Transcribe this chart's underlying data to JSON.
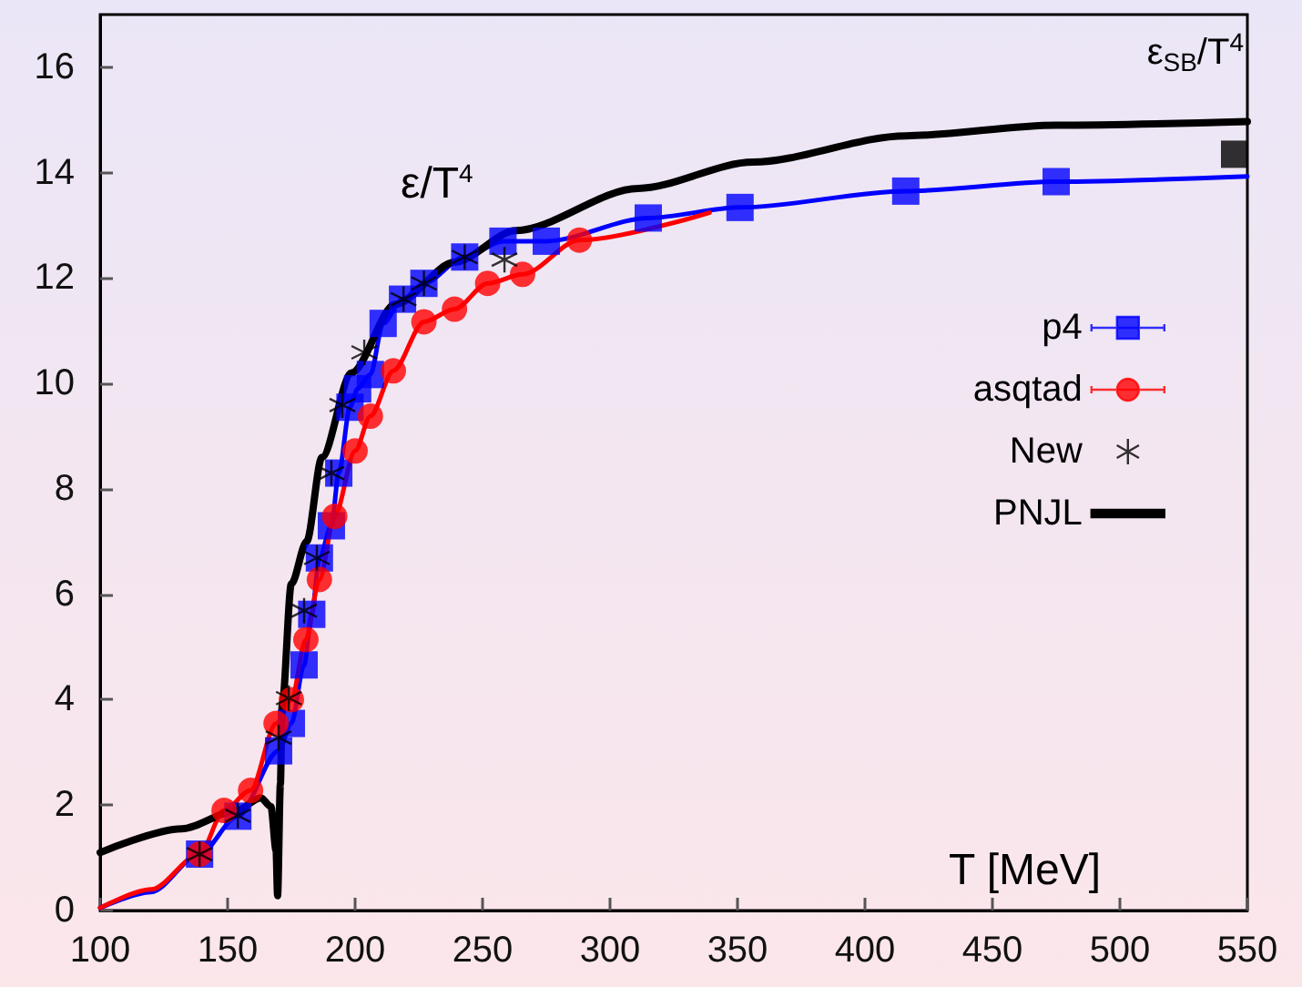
{
  "chart_data": {
    "type": "line",
    "xlabel": "T [MeV]",
    "xlim": [
      100,
      550
    ],
    "xticks": [
      100,
      150,
      200,
      250,
      300,
      350,
      400,
      450,
      500,
      550
    ],
    "ylim": [
      0,
      17
    ],
    "yticks": [
      0,
      2,
      4,
      6,
      8,
      10,
      12,
      14,
      16
    ],
    "grid": false,
    "legend": "right",
    "annotations": [
      "ε/T$^{4}$",
      "ε$_{SB}$/T$^{4}$"
    ],
    "series": [
      {
        "color": "#0000ff",
        "marker": "none",
        "x": [
          100,
          120,
          139,
          154,
          170,
          175,
          180,
          183,
          186,
          190.7,
          193.6,
          198,
          201,
          206,
          211,
          218.6,
          227,
          243,
          258,
          275,
          315,
          351,
          416,
          475,
          550
        ],
        "values": [
          0.05,
          0.35,
          1.07,
          1.79,
          3.03,
          3.55,
          4.66,
          5.62,
          6.69,
          7.3,
          8.3,
          9.55,
          9.9,
          10.17,
          11.14,
          11.6,
          11.9,
          12.4,
          12.7,
          12.7,
          13.14,
          13.34,
          13.65,
          13.83,
          13.93
        ]
      },
      {
        "color": "#ff0000",
        "marker": "none",
        "x": [
          100,
          120,
          139,
          148.6,
          159,
          169,
          175,
          180.7,
          186,
          192,
          200,
          206,
          215,
          227,
          239,
          252,
          265.7,
          288,
          339
        ],
        "values": [
          0.05,
          0.4,
          1.07,
          1.9,
          2.28,
          3.55,
          4.0,
          5.14,
          6.28,
          7.48,
          8.72,
          9.38,
          10.24,
          11.17,
          11.41,
          11.9,
          12.07,
          12.72,
          13.24
        ]
      },
      {
        "type": "scatter",
        "name": "p4",
        "color": "#0000ff",
        "marker": "square",
        "x": [
          139,
          154,
          170,
          175,
          180,
          183,
          186,
          190.7,
          193.6,
          198,
          201,
          206,
          211,
          218.6,
          227,
          243,
          258,
          275,
          315,
          351,
          416,
          475
        ],
        "values": [
          1.07,
          1.79,
          3.03,
          3.55,
          4.66,
          5.62,
          6.69,
          7.3,
          8.3,
          9.55,
          9.9,
          10.17,
          11.14,
          11.6,
          11.9,
          12.4,
          12.7,
          12.7,
          13.14,
          13.34,
          13.65,
          13.83
        ]
      },
      {
        "type": "scatter",
        "name": "asqtad",
        "color": "#ff0000",
        "marker": "circle",
        "x": [
          139,
          148.6,
          159,
          169,
          175,
          180.7,
          186,
          192,
          200,
          206,
          215,
          227,
          239,
          252,
          265.7,
          288
        ],
        "values": [
          1.07,
          1.9,
          2.28,
          3.55,
          4.0,
          5.14,
          6.28,
          7.48,
          8.72,
          9.38,
          10.24,
          11.17,
          11.41,
          11.9,
          12.07,
          12.72
        ]
      },
      {
        "type": "scatter",
        "name": "New",
        "color": "#000000",
        "marker": "cross",
        "x": [
          139,
          154,
          170,
          174,
          180,
          185,
          190.7,
          195,
          203.6,
          219,
          227,
          243,
          258.6
        ],
        "values": [
          1.07,
          1.8,
          3.28,
          4.03,
          5.69,
          6.69,
          8.3,
          9.59,
          10.59,
          11.6,
          11.9,
          12.4,
          12.35
        ]
      },
      {
        "name": "PNJL",
        "color": "#000000",
        "marker": "none",
        "x": [
          100,
          132,
          153.6,
          163,
          167,
          169,
          169.6,
          170.7,
          171.4,
          175,
          181,
          187,
          198.6,
          215.7,
          239,
          263,
          311,
          356,
          416,
          475,
          550
        ],
        "values": [
          1.1,
          1.55,
          1.9,
          2.14,
          1.97,
          1.14,
          0.28,
          2.4,
          3.9,
          6.2,
          7.0,
          8.6,
          10.2,
          11.5,
          12.3,
          12.9,
          13.7,
          14.2,
          14.7,
          14.9,
          14.97
        ]
      },
      {
        "type": "scatter",
        "color": "#000000",
        "marker": "square",
        "x": [
          545
        ],
        "values": [
          14.35
        ]
      }
    ]
  }
}
